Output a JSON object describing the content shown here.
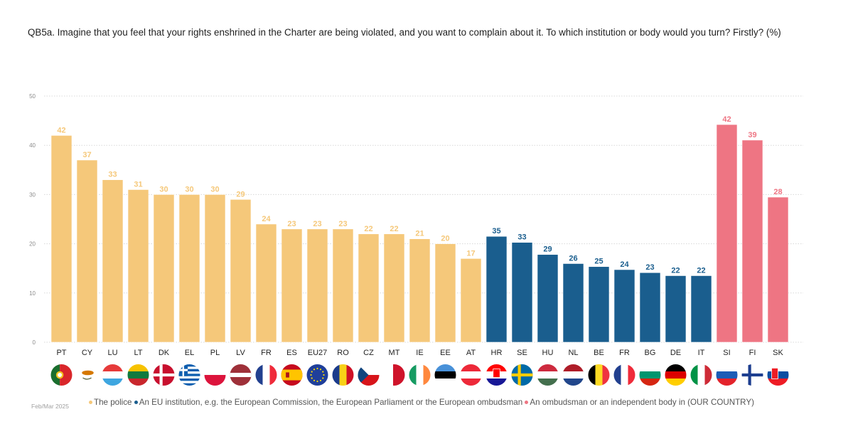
{
  "title": "QB5a. Imagine that you feel that your rights enshrined in the Charter are being violated, and you want to complain about it. To which institution or body would you turn? Firstly? (%)",
  "footer": {
    "date": "Feb/Mar 2025"
  },
  "colors": {
    "police": "#f5c87a",
    "eu_institution": "#1a5e8e",
    "ombudsman": "#ee7583",
    "grid": "#d8d8d8"
  },
  "legend": [
    {
      "label": "The police",
      "color": "#f5c87a"
    },
    {
      "label": "An EU institution, e.g. the European Commission, the European Parliament or the European ombudsman",
      "color": "#1a5e8e"
    },
    {
      "label": "An ombudsman or an independent body in (OUR COUNTRY)",
      "color": "#ee7583"
    }
  ],
  "chart_data": {
    "type": "bar",
    "title": "QB5a. Imagine that you feel that your rights enshrined in the Charter are being violated, and you want to complain about it. To which institution or body would you turn? Firstly? (%)",
    "xlabel": "",
    "ylabel": "",
    "ylim": [
      0,
      50
    ],
    "yticks": [
      0,
      10,
      20,
      30,
      40,
      50
    ],
    "grid": true,
    "legend_position": "bottom",
    "categories": [
      "PT",
      "CY",
      "LU",
      "LT",
      "DK",
      "EL",
      "PL",
      "LV",
      "FR",
      "ES",
      "EU27",
      "RO",
      "CZ",
      "MT",
      "IE",
      "EE",
      "AT",
      "HR",
      "SE",
      "HU",
      "NL",
      "BE",
      "FR",
      "BG",
      "DE",
      "IT",
      "SI",
      "FI",
      "SK"
    ],
    "series": [
      {
        "name": "The police",
        "key": "police",
        "categories": [
          "PT",
          "CY",
          "LU",
          "LT",
          "DK",
          "EL",
          "PL",
          "LV",
          "FR",
          "ES",
          "EU27",
          "RO",
          "CZ",
          "MT",
          "IE",
          "EE",
          "AT"
        ],
        "values": [
          42,
          37,
          33,
          31,
          30,
          30,
          30,
          29,
          24,
          23,
          23,
          23,
          22,
          22,
          21,
          20,
          17
        ]
      },
      {
        "name": "An EU institution, e.g. the European Commission, the European Parliament or the European ombudsman",
        "key": "eu_institution",
        "categories": [
          "HR",
          "SE",
          "HU",
          "NL",
          "BE",
          "FR",
          "BG",
          "DE",
          "IT"
        ],
        "values": [
          35,
          33,
          29,
          26,
          25,
          24,
          23,
          22,
          22
        ]
      },
      {
        "name": "An ombudsman or an independent body in (OUR COUNTRY)",
        "key": "ombudsman",
        "categories": [
          "SI",
          "FI",
          "SK"
        ],
        "values": [
          42,
          39,
          28
        ]
      }
    ]
  }
}
